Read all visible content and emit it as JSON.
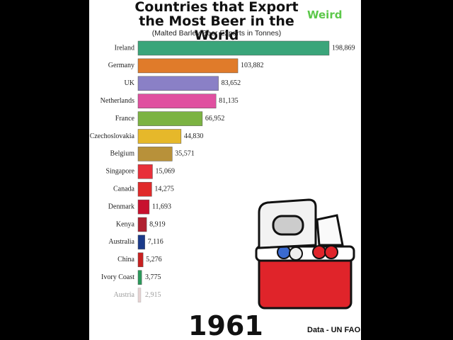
{
  "chart_data": {
    "type": "bar",
    "orientation": "horizontal",
    "title": "Countries that Export the Most Beer in the World",
    "subtitle": "(Malted Barley Beer Exports in Tonnes)",
    "categories": [
      "Ireland",
      "Germany",
      "UK",
      "Netherlands",
      "France",
      "Czechoslovakia",
      "Belgium",
      "Singapore",
      "Canada",
      "Denmark",
      "Kenya",
      "Australia",
      "China",
      "Ivory Coast",
      "Austria"
    ],
    "values": [
      198869,
      103882,
      83652,
      81135,
      66952,
      44830,
      35571,
      15069,
      14275,
      11693,
      8919,
      7116,
      5276,
      3775,
      2915
    ],
    "value_labels": [
      "198,869",
      "103,882",
      "83,652",
      "81,135",
      "66,952",
      "44,830",
      "35,571",
      "15,069",
      "14,275",
      "11,693",
      "8,919",
      "7,116",
      "5,276",
      "3,775",
      "2,915"
    ],
    "colors": [
      "#3aa57a",
      "#e07b2a",
      "#8a80c6",
      "#e050a0",
      "#7cb342",
      "#e6b82a",
      "#b8913a",
      "#e8303a",
      "#e02a2a",
      "#c8102e",
      "#b02030",
      "#1a3a8a",
      "#c82020",
      "#2a9a5a",
      "#c8a0a0"
    ],
    "year": "1961",
    "source": "Data - UN FAO",
    "logo": "Weird"
  }
}
